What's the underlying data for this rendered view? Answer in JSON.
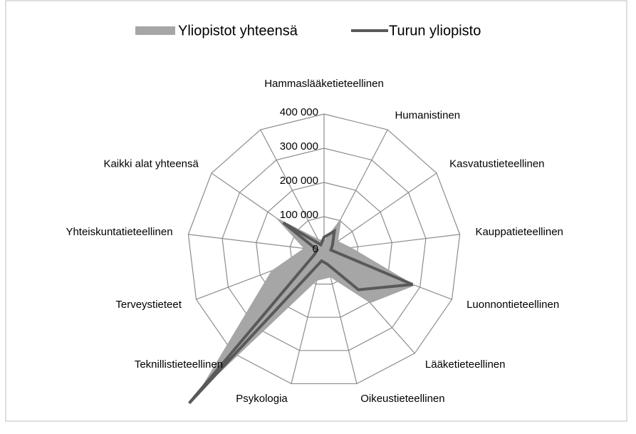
{
  "chart_data": {
    "type": "radar",
    "categories": [
      "Hammaslääketieteellinen",
      "Humanistinen",
      "Kasvatustieteellinen",
      "Kauppatieteellinen",
      "Luonnontieteellinen",
      "Lääketieteellinen",
      "Oikeustieteellinen",
      "Psykologia",
      "Teknillistieteellinen",
      "Terveystieteet",
      "Yhteiskuntatieteellinen",
      "Kaikki alat yhteensä",
      null
    ],
    "series": [
      {
        "name": "Yliopistot yhteensä",
        "color": "#a6a6a6",
        "values": [
          30000,
          110000,
          50000,
          80000,
          285000,
          204000,
          80000,
          90000,
          558000,
          165000,
          60000,
          175000,
          40000
        ]
      },
      {
        "name": "Turun yliopisto",
        "color": "#595959",
        "values": [
          40000,
          65000,
          30000,
          20000,
          277000,
          152000,
          40000,
          30000,
          595000,
          30000,
          20000,
          145000,
          20000
        ]
      }
    ],
    "ylim": [
      0,
      400000
    ],
    "yticks": [
      0,
      {
        "value": 100000,
        "label": "100 000"
      },
      {
        "value": 200000,
        "label": "200 000"
      },
      {
        "value": 300000,
        "label": "300 000"
      },
      {
        "value": 400000,
        "label": "400 000"
      }
    ],
    "grid": true,
    "legend": "top"
  }
}
